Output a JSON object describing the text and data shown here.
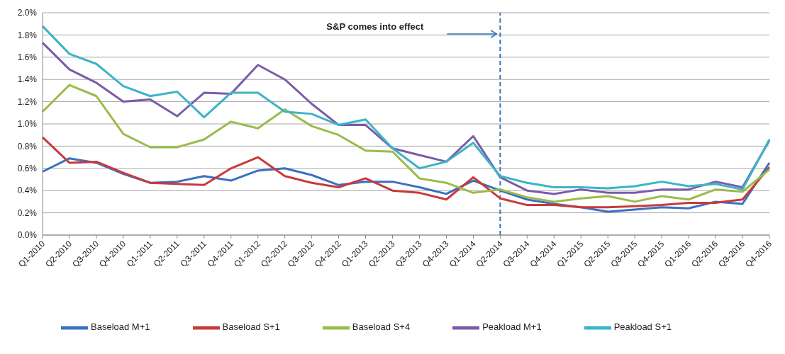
{
  "chart_data": {
    "type": "line",
    "categories": [
      "Q1-2010",
      "Q2-2010",
      "Q3-2010",
      "Q4-2010",
      "Q1-2011",
      "Q2-2011",
      "Q3-2011",
      "Q4-2011",
      "Q1-2012",
      "Q2-2012",
      "Q3-2012",
      "Q4-2012",
      "Q1-2013",
      "Q2-2013",
      "Q3-2013",
      "Q4-2013",
      "Q1-2014",
      "Q2-2014",
      "Q3-2014",
      "Q4-2014",
      "Q1-2015",
      "Q2-2015",
      "Q3-2015",
      "Q4-2015",
      "Q1-2016",
      "Q2-2016",
      "Q3-2016",
      "Q4-2016"
    ],
    "series": [
      {
        "name": "Baseload M+1",
        "color": "#3a70c0",
        "values": [
          0.57,
          0.69,
          0.65,
          0.55,
          0.47,
          0.48,
          0.53,
          0.49,
          0.58,
          0.6,
          0.54,
          0.45,
          0.48,
          0.48,
          0.43,
          0.37,
          0.49,
          0.4,
          0.32,
          0.28,
          0.25,
          0.21,
          0.23,
          0.25,
          0.24,
          0.3,
          0.28,
          0.65
        ]
      },
      {
        "name": "Baseload S+1",
        "color": "#c83a3a",
        "values": [
          0.88,
          0.65,
          0.66,
          0.56,
          0.47,
          0.46,
          0.45,
          0.6,
          0.7,
          0.53,
          0.47,
          0.43,
          0.51,
          0.4,
          0.38,
          0.32,
          0.52,
          0.33,
          0.27,
          0.27,
          0.25,
          0.25,
          0.26,
          0.27,
          0.29,
          0.29,
          0.32,
          0.61
        ]
      },
      {
        "name": "Baseload S+4",
        "color": "#9bbb4a",
        "values": [
          1.11,
          1.35,
          1.25,
          0.91,
          0.79,
          0.79,
          0.86,
          1.02,
          0.96,
          1.13,
          0.98,
          0.9,
          0.76,
          0.75,
          0.51,
          0.47,
          0.38,
          0.41,
          0.34,
          0.3,
          0.33,
          0.35,
          0.3,
          0.35,
          0.32,
          0.41,
          0.39,
          0.59
        ]
      },
      {
        "name": "Peakload M+1",
        "color": "#7a5ca8",
        "values": [
          1.73,
          1.49,
          1.37,
          1.2,
          1.22,
          1.07,
          1.28,
          1.27,
          1.53,
          1.4,
          1.18,
          0.99,
          0.99,
          0.78,
          0.72,
          0.66,
          0.89,
          0.52,
          0.4,
          0.37,
          0.41,
          0.38,
          0.38,
          0.41,
          0.41,
          0.48,
          0.43,
          0.85
        ]
      },
      {
        "name": "Peakload S+1",
        "color": "#3cb4c8",
        "values": [
          1.88,
          1.63,
          1.54,
          1.34,
          1.25,
          1.29,
          1.06,
          1.28,
          1.28,
          1.11,
          1.09,
          0.99,
          1.04,
          0.78,
          0.6,
          0.66,
          0.83,
          0.53,
          0.47,
          0.43,
          0.43,
          0.42,
          0.44,
          0.48,
          0.44,
          0.46,
          0.41,
          0.86
        ]
      }
    ],
    "ylim": [
      0,
      2.0
    ],
    "yticks": [
      {
        "value": 0,
        "label": "0.0%"
      },
      {
        "value": 0.2,
        "label": "0.2%"
      },
      {
        "value": 0.4,
        "label": "0.4%"
      },
      {
        "value": 0.6,
        "label": "0.6%"
      },
      {
        "value": 0.8,
        "label": "0.8%"
      },
      {
        "value": 1.0,
        "label": "1.0%"
      },
      {
        "value": 1.2,
        "label": "1.2%"
      },
      {
        "value": 1.4,
        "label": "1.4%"
      },
      {
        "value": 1.6,
        "label": "1.6%"
      },
      {
        "value": 1.8,
        "label": "1.8%"
      },
      {
        "value": 2.0,
        "label": "2.0%"
      }
    ],
    "ref_lines": [
      {
        "axis": "x",
        "value": "Q2-2014",
        "color": "#2e75b6",
        "line_style": "dashed"
      }
    ],
    "annotations": [
      "S&P comes into effect"
    ],
    "grid": "y",
    "legend": "bottom",
    "marker": "none",
    "line_style": "solid"
  }
}
